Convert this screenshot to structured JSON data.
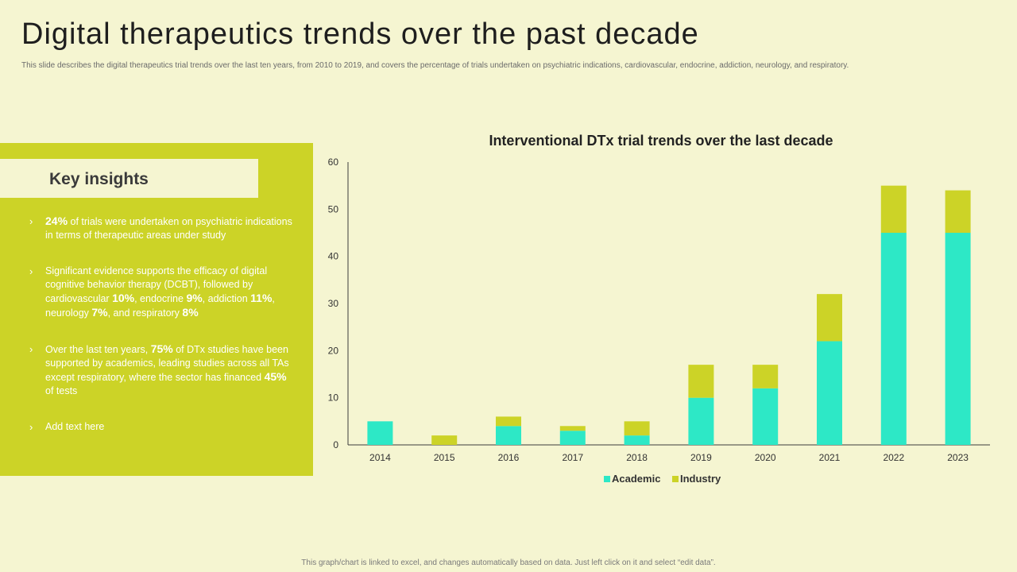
{
  "page": {
    "title": "Digital therapeutics trends over the past decade",
    "subtitle": "This slide describes the digital therapeutics trial trends over the last ten years, from 2010 to 2019, and covers the percentage of trials undertaken on psychiatric indications, cardiovascular, endocrine, addiction, neurology, and respiratory.",
    "footer": "This graph/chart is linked to excel, and changes automatically based on data. Just left click on it and select “edit data”."
  },
  "insights": {
    "title": "Key insights",
    "chevron": "›",
    "items": [
      {
        "parts": [
          {
            "t": "24%",
            "b": true
          },
          {
            "t": " of trials were undertaken on psychiatric indications in terms of therapeutic areas under study",
            "b": false
          }
        ]
      },
      {
        "parts": [
          {
            "t": "Significant evidence supports the efficacy of digital cognitive behavior therapy (DCBT), followed by cardiovascular ",
            "b": false
          },
          {
            "t": "10%",
            "b": true
          },
          {
            "t": ", endocrine ",
            "b": false
          },
          {
            "t": "9%",
            "b": true
          },
          {
            "t": ", addiction ",
            "b": false
          },
          {
            "t": "11%",
            "b": true
          },
          {
            "t": ", neurology ",
            "b": false
          },
          {
            "t": "7%",
            "b": true
          },
          {
            "t": ", and respiratory ",
            "b": false
          },
          {
            "t": "8%",
            "b": true
          }
        ]
      },
      {
        "parts": [
          {
            "t": "Over the last ten years, ",
            "b": false
          },
          {
            "t": "75%",
            "b": true
          },
          {
            "t": " of DTx studies have been supported by academics, leading studies across all TAs except respiratory, where the sector has financed ",
            "b": false
          },
          {
            "t": "45%",
            "b": true
          },
          {
            "t": " of tests",
            "b": false
          }
        ]
      },
      {
        "parts": [
          {
            "t": "Add text here",
            "b": false
          }
        ]
      }
    ]
  },
  "colors": {
    "academic": "#2de8c6",
    "industry": "#ccd327",
    "axis": "#3a3a3a"
  },
  "chart_data": {
    "type": "bar",
    "stacked": true,
    "title": "Interventional DTx trial trends over the last decade",
    "categories": [
      "2014",
      "2015",
      "2016",
      "2017",
      "2018",
      "2019",
      "2020",
      "2021",
      "2022",
      "2023"
    ],
    "series": [
      {
        "name": "Academic",
        "values": [
          5,
          0,
          4,
          3,
          2,
          10,
          12,
          22,
          45,
          45
        ]
      },
      {
        "name": "Industry",
        "values": [
          0,
          2,
          2,
          1,
          3,
          7,
          5,
          10,
          10,
          9
        ]
      }
    ],
    "ylim": [
      0,
      60
    ],
    "yticks": [
      0,
      10,
      20,
      30,
      40,
      50,
      60
    ],
    "xlabel": "",
    "ylabel": "",
    "grid": false,
    "legend": "bottom"
  }
}
